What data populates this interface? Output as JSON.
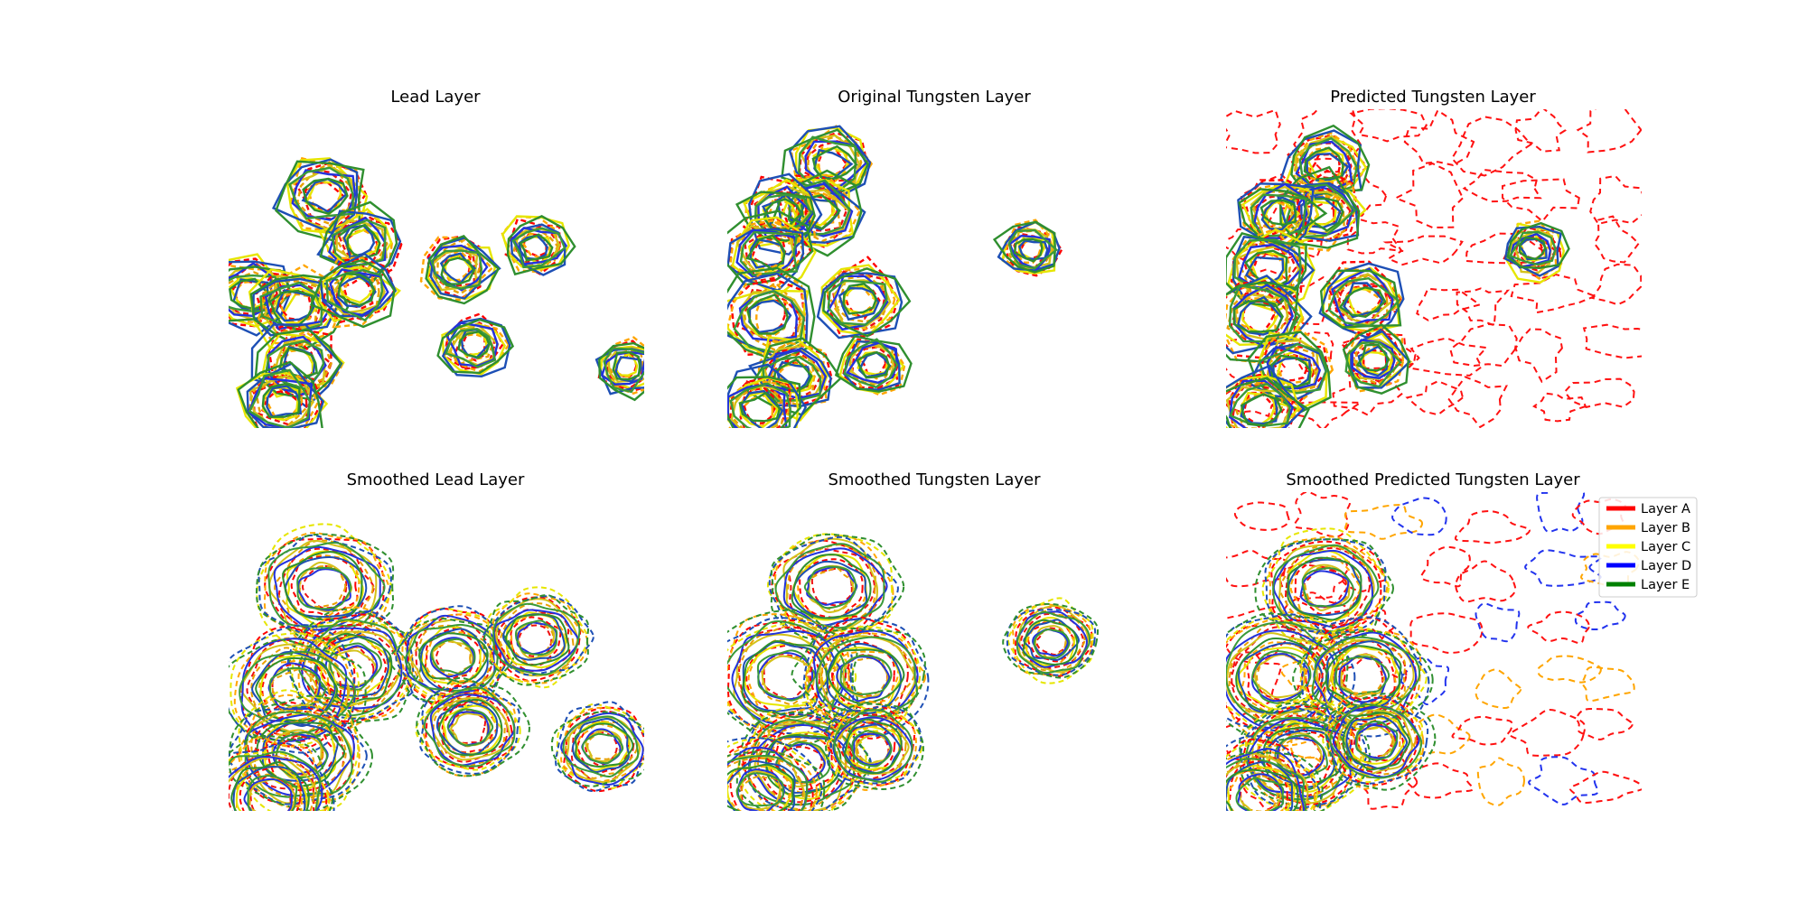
{
  "figure": {
    "legend": {
      "location": "upper right of bottom-right panel",
      "entries": [
        {
          "label": "Layer A",
          "color": "#ff0000"
        },
        {
          "label": "Layer B",
          "color": "#ffa500"
        },
        {
          "label": "Layer C",
          "color": "#ffff00"
        },
        {
          "label": "Layer D",
          "color": "#0000ff"
        },
        {
          "label": "Layer E",
          "color": "#008000"
        }
      ]
    }
  },
  "chart_data": [
    {
      "type": "contour",
      "title": "Lead Layer",
      "axes": "off",
      "style": "sparse, angular contours; solid and dashed lines",
      "peaks": [
        {
          "x": 0.23,
          "y": 0.73,
          "level": 0.9
        },
        {
          "x": 0.32,
          "y": 0.58,
          "level": 0.7
        },
        {
          "x": 0.05,
          "y": 0.42,
          "level": 0.8
        },
        {
          "x": 0.16,
          "y": 0.38,
          "level": 0.9
        },
        {
          "x": 0.31,
          "y": 0.43,
          "level": 0.7
        },
        {
          "x": 0.17,
          "y": 0.2,
          "level": 0.8
        },
        {
          "x": 0.13,
          "y": 0.08,
          "level": 0.9
        },
        {
          "x": 0.55,
          "y": 0.5,
          "level": 0.6
        },
        {
          "x": 0.59,
          "y": 0.26,
          "level": 0.5
        },
        {
          "x": 0.74,
          "y": 0.57,
          "level": 0.5
        },
        {
          "x": 0.96,
          "y": 0.19,
          "level": 0.4
        }
      ]
    },
    {
      "type": "contour",
      "title": "Original Tungsten Layer",
      "axes": "off",
      "style": "sparse, angular contours; solid and dashed lines",
      "peaks": [
        {
          "x": 0.25,
          "y": 0.83,
          "level": 0.8
        },
        {
          "x": 0.22,
          "y": 0.68,
          "level": 0.8
        },
        {
          "x": 0.13,
          "y": 0.67,
          "level": 0.7
        },
        {
          "x": 0.1,
          "y": 0.55,
          "level": 0.8
        },
        {
          "x": 0.1,
          "y": 0.35,
          "level": 1.0
        },
        {
          "x": 0.32,
          "y": 0.4,
          "level": 0.8
        },
        {
          "x": 0.16,
          "y": 0.16,
          "level": 0.8
        },
        {
          "x": 0.35,
          "y": 0.2,
          "level": 0.5
        },
        {
          "x": 0.08,
          "y": 0.06,
          "level": 0.8
        },
        {
          "x": 0.73,
          "y": 0.56,
          "level": 0.4
        }
      ]
    },
    {
      "type": "contour",
      "title": "Predicted Tungsten Layer",
      "axes": "off",
      "style": "sparse contours with dense low-level dashed red background field",
      "peaks": [
        {
          "x": 0.24,
          "y": 0.82,
          "level": 0.8
        },
        {
          "x": 0.23,
          "y": 0.68,
          "level": 0.8
        },
        {
          "x": 0.13,
          "y": 0.67,
          "level": 0.7
        },
        {
          "x": 0.1,
          "y": 0.5,
          "level": 0.9
        },
        {
          "x": 0.08,
          "y": 0.35,
          "level": 1.0
        },
        {
          "x": 0.33,
          "y": 0.4,
          "level": 0.8
        },
        {
          "x": 0.16,
          "y": 0.18,
          "level": 0.8
        },
        {
          "x": 0.36,
          "y": 0.21,
          "level": 0.5
        },
        {
          "x": 0.08,
          "y": 0.06,
          "level": 0.8
        },
        {
          "x": 0.74,
          "y": 0.56,
          "level": 0.4
        }
      ]
    },
    {
      "type": "contour",
      "title": "Smoothed Lead Layer",
      "axes": "off",
      "style": "smooth, rounded contours; solid and dashed lines",
      "peaks": [
        {
          "x": 0.23,
          "y": 0.7,
          "level": 0.9
        },
        {
          "x": 0.3,
          "y": 0.45,
          "level": 0.8
        },
        {
          "x": 0.16,
          "y": 0.38,
          "level": 0.9
        },
        {
          "x": 0.17,
          "y": 0.18,
          "level": 0.9
        },
        {
          "x": 0.1,
          "y": 0.04,
          "level": 0.8
        },
        {
          "x": 0.54,
          "y": 0.48,
          "level": 0.6
        },
        {
          "x": 0.74,
          "y": 0.54,
          "level": 0.5
        },
        {
          "x": 0.58,
          "y": 0.26,
          "level": 0.5
        },
        {
          "x": 0.9,
          "y": 0.2,
          "level": 0.4
        }
      ]
    },
    {
      "type": "contour",
      "title": "Smoothed Tungsten Layer",
      "axes": "off",
      "style": "smooth, rounded contours; solid and dashed lines",
      "peaks": [
        {
          "x": 0.25,
          "y": 0.7,
          "level": 0.8
        },
        {
          "x": 0.14,
          "y": 0.42,
          "level": 1.0
        },
        {
          "x": 0.33,
          "y": 0.42,
          "level": 0.8
        },
        {
          "x": 0.18,
          "y": 0.15,
          "level": 0.8
        },
        {
          "x": 0.35,
          "y": 0.2,
          "level": 0.4
        },
        {
          "x": 0.08,
          "y": 0.06,
          "level": 0.7
        },
        {
          "x": 0.78,
          "y": 0.53,
          "level": 0.3
        }
      ]
    },
    {
      "type": "contour",
      "title": "Smoothed Predicted Tungsten Layer",
      "axes": "off",
      "style": "smooth contours with dashed low-level background field",
      "peaks": [
        {
          "x": 0.24,
          "y": 0.7,
          "level": 0.8
        },
        {
          "x": 0.13,
          "y": 0.42,
          "level": 1.0
        },
        {
          "x": 0.33,
          "y": 0.42,
          "level": 0.8
        },
        {
          "x": 0.18,
          "y": 0.17,
          "level": 0.8
        },
        {
          "x": 0.36,
          "y": 0.22,
          "level": 0.5
        },
        {
          "x": 0.08,
          "y": 0.05,
          "level": 0.7
        }
      ]
    }
  ]
}
